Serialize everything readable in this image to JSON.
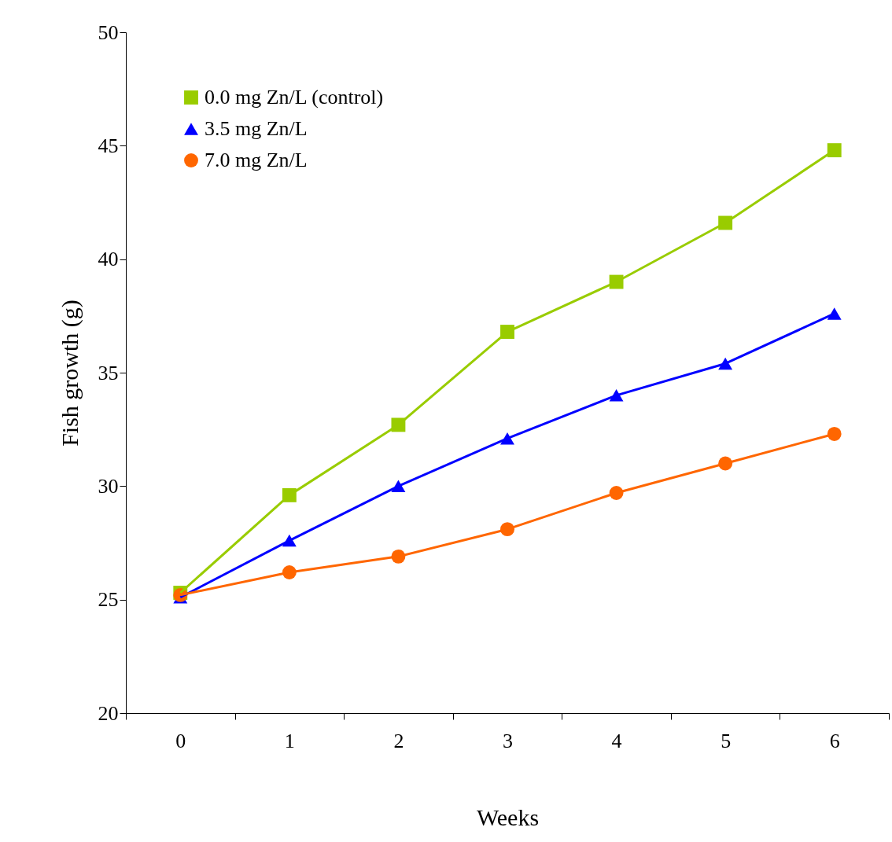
{
  "chart_data": {
    "type": "line",
    "xlabel": "Weeks",
    "ylabel": "Fish growth (g)",
    "categories": [
      "0",
      "1",
      "2",
      "3",
      "4",
      "5",
      "6"
    ],
    "series": [
      {
        "name": "0.0 mg Zn/L (control)",
        "color": "#99cc00",
        "marker": "square",
        "values": [
          25.3,
          29.6,
          32.7,
          36.8,
          39.0,
          41.6,
          44.8
        ]
      },
      {
        "name": "3.5 mg Zn/L",
        "color": "#0000ff",
        "marker": "triangle",
        "values": [
          25.1,
          27.6,
          30.0,
          32.1,
          34.0,
          35.4,
          37.6
        ]
      },
      {
        "name": "7.0 mg Zn/L",
        "color": "#ff6600",
        "marker": "circle",
        "values": [
          25.2,
          26.2,
          26.9,
          28.1,
          29.7,
          31.0,
          32.3
        ]
      }
    ],
    "ylim": [
      20,
      50
    ],
    "yticks": [
      20,
      25,
      30,
      35,
      40,
      45,
      50
    ],
    "grid": false,
    "legend": "top left",
    "line_style": "solid"
  }
}
